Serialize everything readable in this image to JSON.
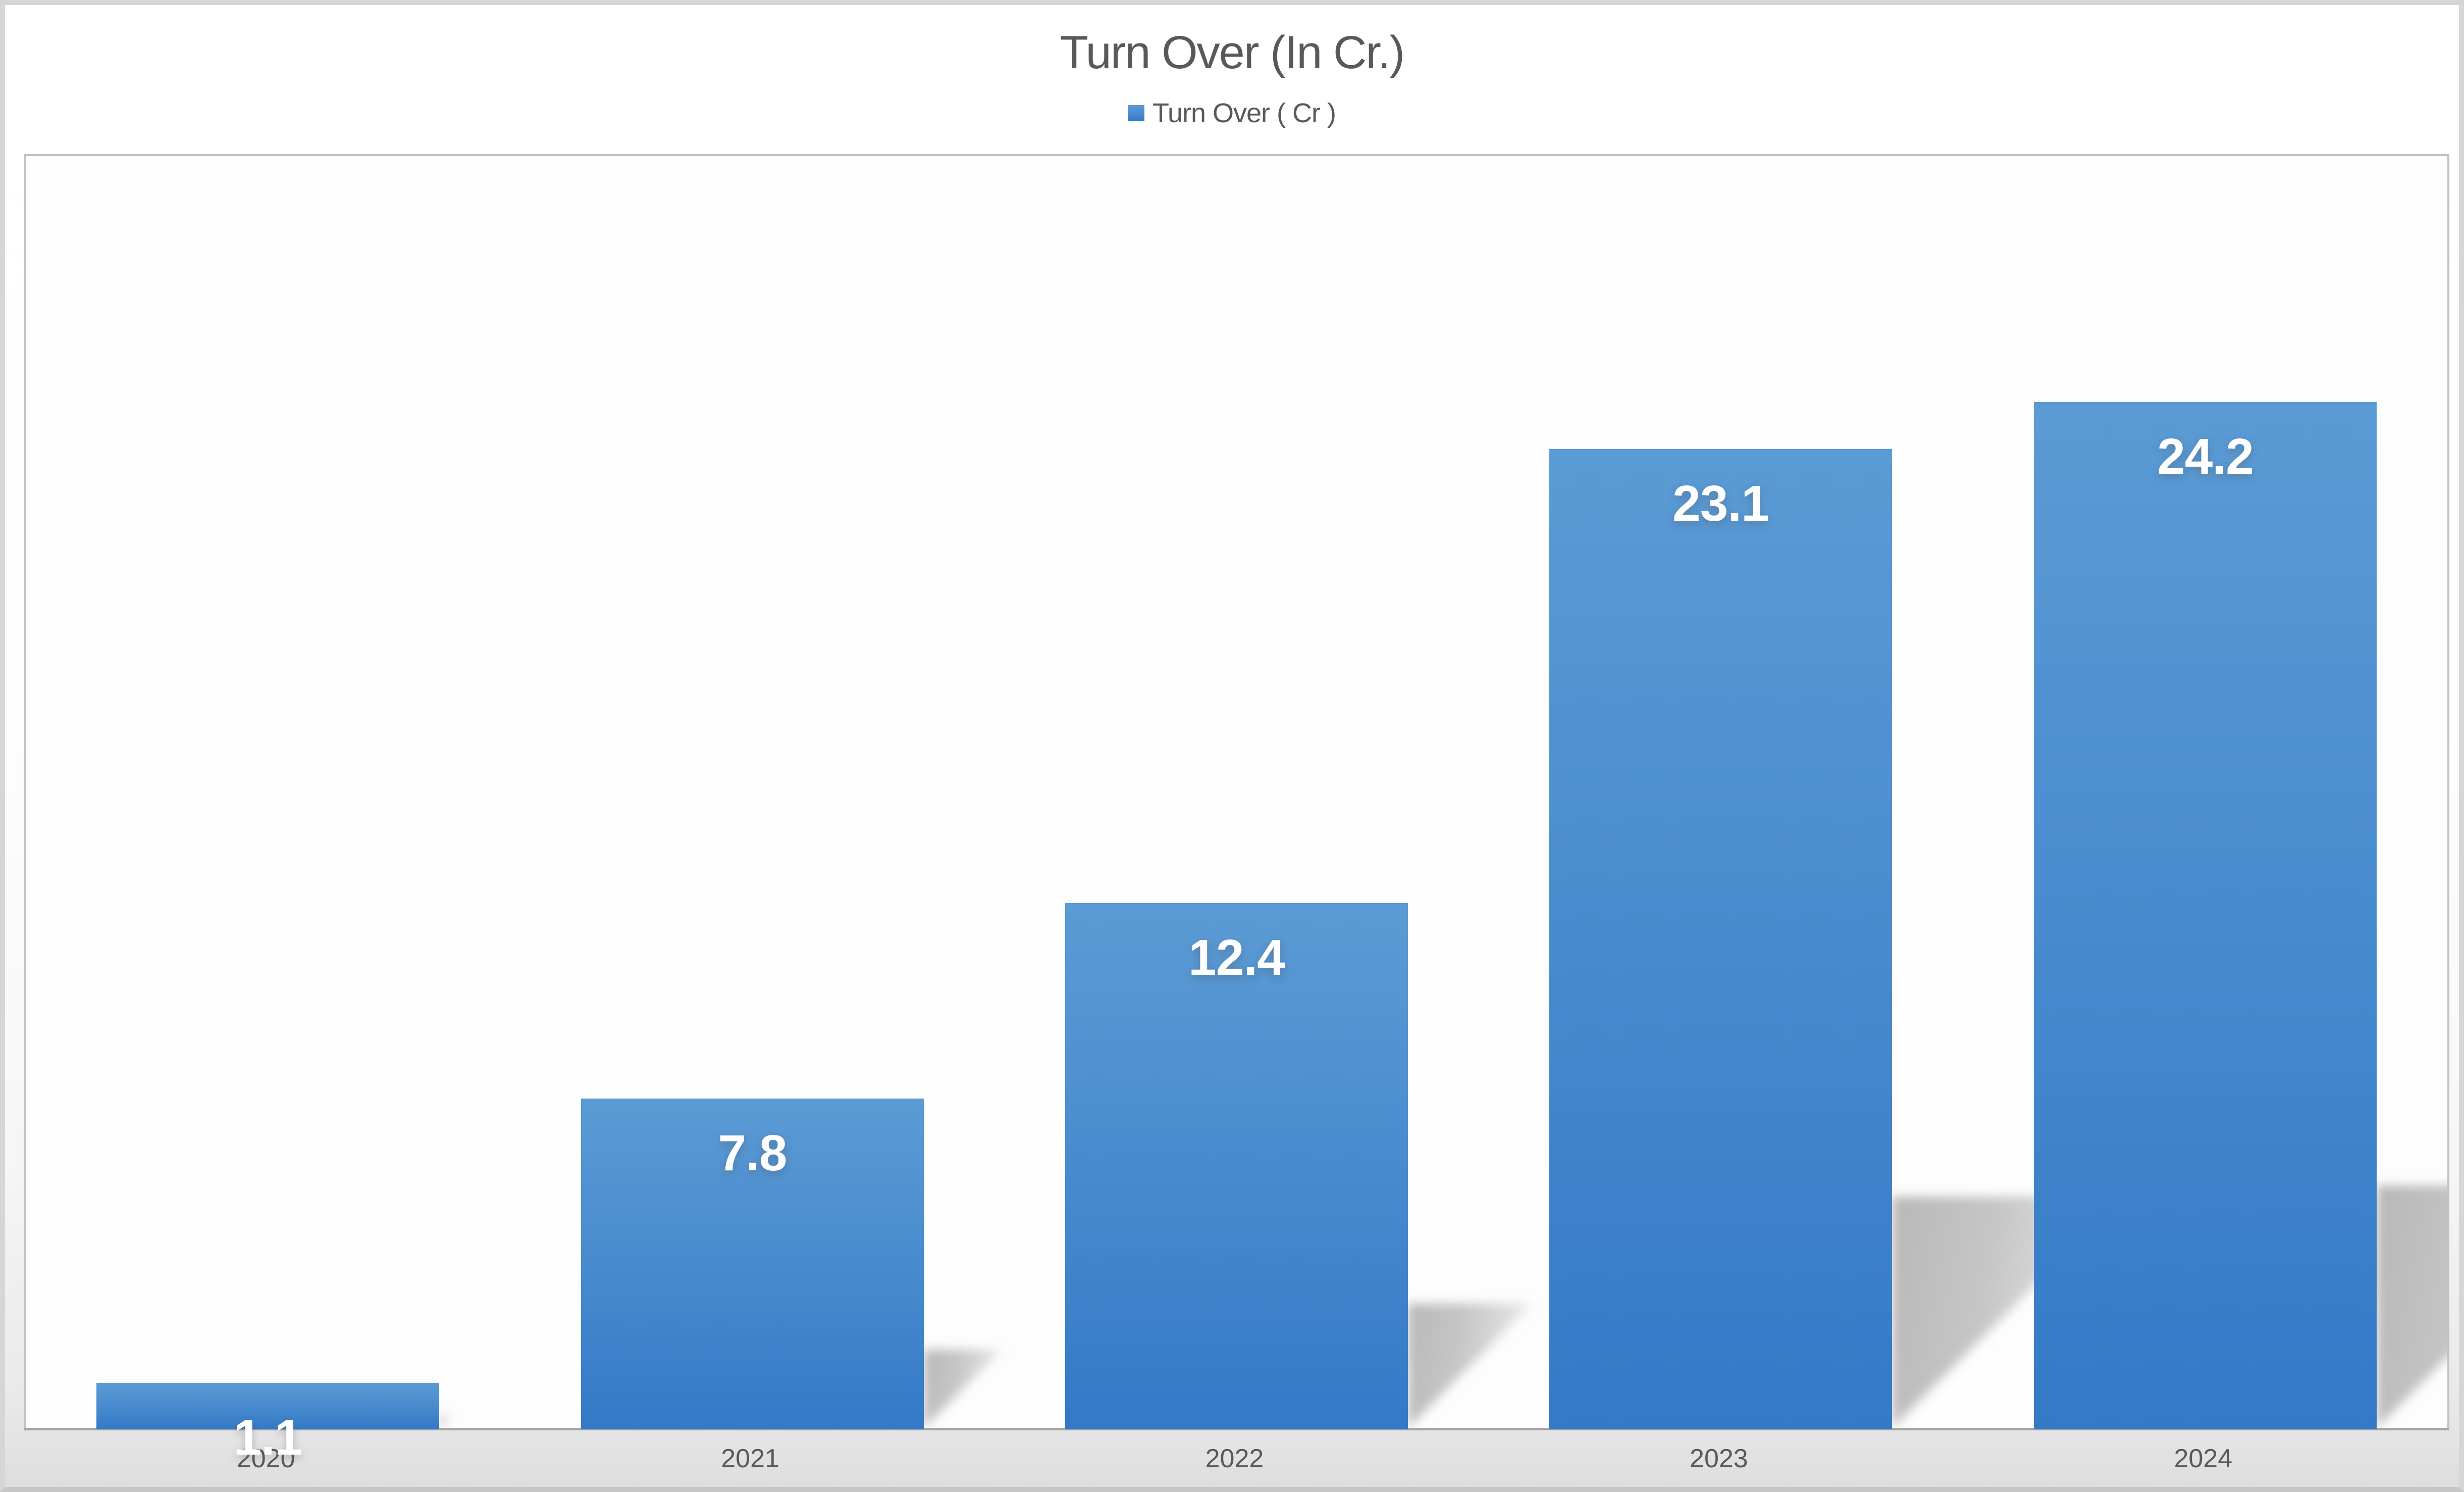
{
  "title": "Turn Over (In Cr.)",
  "legend": {
    "label": "Turn Over ( Cr )",
    "position": "top"
  },
  "chart_data": {
    "type": "bar",
    "title": "Turn Over (In Cr.)",
    "categories": [
      "2020",
      "2021",
      "2022",
      "2023",
      "2024"
    ],
    "series": [
      {
        "name": "Turn Over ( Cr )",
        "values": [
          1.1,
          7.8,
          12.4,
          23.1,
          24.2
        ]
      }
    ],
    "data_labels": [
      "1.1",
      "7.8",
      "12.4",
      "23.1",
      "24.2"
    ],
    "xlabel": "",
    "ylabel": "",
    "ylim": [
      0,
      30
    ],
    "grid": false,
    "value_axis_visible": false,
    "legend_position": "top",
    "style": {
      "bar_gradient_top": "#5B9BD5",
      "bar_gradient_mid": "#4A8DCF",
      "bar_gradient_bottom": "#3379C6",
      "data_label_color": "#FFFFFF",
      "axis_text_color": "#595959",
      "title_color": "#595959",
      "axis_line_color": "#A6A6A6",
      "plot_border_color": "#C2C2C2",
      "chart_border_color": "#D6D6D6",
      "shadow_color": "#B8B8B8"
    }
  }
}
